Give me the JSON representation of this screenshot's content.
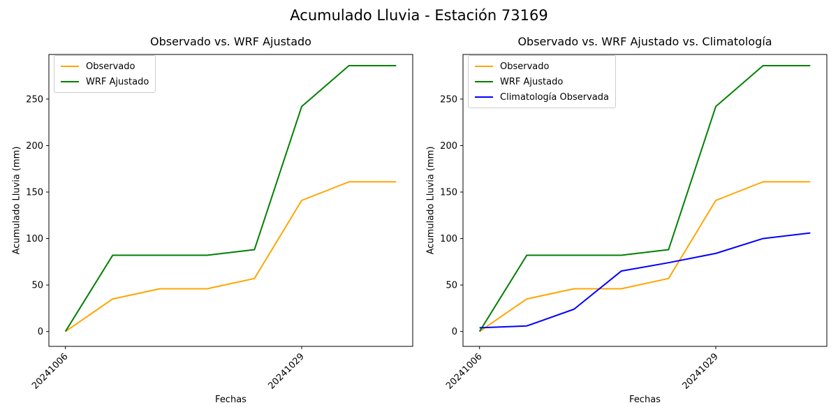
{
  "figure": {
    "suptitle": "Acumulado Lluvia - Estación 73169",
    "background": "#ffffff",
    "text_color": "#000000",
    "axes_color": "#000000"
  },
  "chart_data": [
    {
      "type": "line",
      "title": "Observado vs. WRF Ajustado",
      "xlabel": "Fechas",
      "ylabel": "Acumulado Lluvia (mm)",
      "x": [
        0,
        1,
        2,
        3,
        4,
        5,
        6,
        7
      ],
      "x_ticks": [
        {
          "index": 0,
          "label": "20241006"
        },
        {
          "index": 5,
          "label": "20241029"
        }
      ],
      "y_ticks": [
        0,
        50,
        100,
        150,
        200,
        250
      ],
      "xlim": [
        -0.35,
        7.35
      ],
      "ylim": [
        -16,
        298
      ],
      "grid": false,
      "legend_position": "upper-left",
      "series": [
        {
          "name": "Observado",
          "color": "#FFA500",
          "values": [
            0,
            35,
            46,
            46,
            57,
            141,
            161,
            161
          ]
        },
        {
          "name": "WRF Ajustado",
          "color": "#008000",
          "values": [
            0,
            82,
            82,
            82,
            88,
            242,
            286,
            286
          ]
        }
      ]
    },
    {
      "type": "line",
      "title": "Observado vs. WRF Ajustado vs. Climatología",
      "xlabel": "Fechas",
      "ylabel": "Acumulado Lluvia (mm)",
      "x": [
        0,
        1,
        2,
        3,
        4,
        5,
        6,
        7
      ],
      "x_ticks": [
        {
          "index": 0,
          "label": "20241006"
        },
        {
          "index": 5,
          "label": "20241029"
        }
      ],
      "y_ticks": [
        0,
        50,
        100,
        150,
        200,
        250
      ],
      "xlim": [
        -0.35,
        7.35
      ],
      "ylim": [
        -16,
        298
      ],
      "grid": false,
      "legend_position": "upper-left",
      "series": [
        {
          "name": "Observado",
          "color": "#FFA500",
          "values": [
            0,
            35,
            46,
            46,
            57,
            141,
            161,
            161
          ]
        },
        {
          "name": "WRF Ajustado",
          "color": "#008000",
          "values": [
            0,
            82,
            82,
            82,
            88,
            242,
            286,
            286
          ]
        },
        {
          "name": "Climatología Observada",
          "color": "#0000FF",
          "values": [
            4,
            6,
            24,
            65,
            74,
            84,
            100,
            106
          ]
        }
      ]
    }
  ]
}
